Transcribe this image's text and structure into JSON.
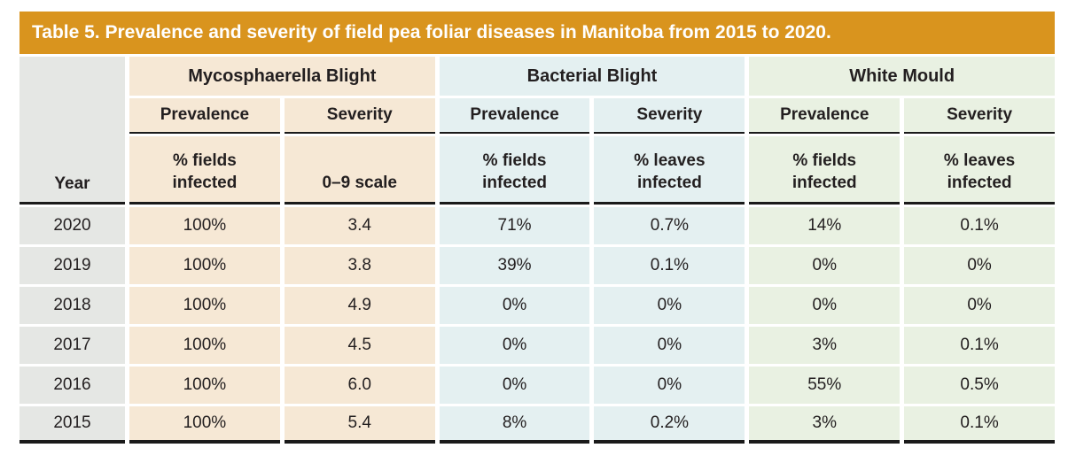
{
  "title": "Table 5. Prevalence and severity of field pea foliar diseases in Manitoba from 2015 to 2020.",
  "table": {
    "year_header": "Year",
    "groups": [
      {
        "name": "Mycosphaerella Blight",
        "columns": [
          {
            "type_label": "Prevalence",
            "measure_line1": "% fields",
            "measure_line2": "infected"
          },
          {
            "type_label": "Severity",
            "measure_line1": "",
            "measure_line2": "0–9 scale"
          }
        ]
      },
      {
        "name": "Bacterial Blight",
        "columns": [
          {
            "type_label": "Prevalence",
            "measure_line1": "% fields",
            "measure_line2": "infected"
          },
          {
            "type_label": "Severity",
            "measure_line1": "% leaves",
            "measure_line2": "infected"
          }
        ]
      },
      {
        "name": "White Mould",
        "columns": [
          {
            "type_label": "Prevalence",
            "measure_line1": "% fields",
            "measure_line2": "infected"
          },
          {
            "type_label": "Severity",
            "measure_line1": "% leaves",
            "measure_line2": "infected"
          }
        ]
      }
    ],
    "rows": [
      {
        "year": "2020",
        "values": [
          "100%",
          "3.4",
          "71%",
          "0.7%",
          "14%",
          "0.1%"
        ]
      },
      {
        "year": "2019",
        "values": [
          "100%",
          "3.8",
          "39%",
          "0.1%",
          "0%",
          "0%"
        ]
      },
      {
        "year": "2018",
        "values": [
          "100%",
          "4.9",
          "0%",
          "0%",
          "0%",
          "0%"
        ]
      },
      {
        "year": "2017",
        "values": [
          "100%",
          "4.5",
          "0%",
          "0%",
          "3%",
          "0.1%"
        ]
      },
      {
        "year": "2016",
        "values": [
          "100%",
          "6.0",
          "0%",
          "0%",
          "55%",
          "0.5%"
        ]
      },
      {
        "year": "2015",
        "values": [
          "100%",
          "5.4",
          "8%",
          "0.2%",
          "3%",
          "0.1%"
        ]
      }
    ]
  },
  "colors": {
    "title_bar": "#D9941E",
    "title_text": "#FFFFFF",
    "year_column": "#E5E7E4",
    "mycosphaerella_fill": "#F6E8D5",
    "bacterial_fill": "#E4F0F1",
    "white_mould_fill": "#E9F1E2",
    "text": "#231F20",
    "rule": "#1A1A1A"
  },
  "chart_data": {
    "type": "table",
    "title": "Table 5. Prevalence and severity of field pea foliar diseases in Manitoba from 2015 to 2020.",
    "column_headers": [
      "Year",
      "Mycosphaerella Blight Prevalence (% fields infected)",
      "Mycosphaerella Blight Severity (0–9 scale)",
      "Bacterial Blight Prevalence (% fields infected)",
      "Bacterial Blight Severity (% leaves infected)",
      "White Mould Prevalence (% fields infected)",
      "White Mould Severity (% leaves infected)"
    ],
    "rows": [
      [
        "2020",
        "100%",
        "3.4",
        "71%",
        "0.7%",
        "14%",
        "0.1%"
      ],
      [
        "2019",
        "100%",
        "3.8",
        "39%",
        "0.1%",
        "0%",
        "0%"
      ],
      [
        "2018",
        "100%",
        "4.9",
        "0%",
        "0%",
        "0%",
        "0%"
      ],
      [
        "2017",
        "100%",
        "4.5",
        "0%",
        "0%",
        "3%",
        "0.1%"
      ],
      [
        "2016",
        "100%",
        "6.0",
        "0%",
        "0%",
        "55%",
        "0.5%"
      ],
      [
        "2015",
        "100%",
        "5.4",
        "8%",
        "0.2%",
        "3%",
        "0.1%"
      ]
    ]
  }
}
